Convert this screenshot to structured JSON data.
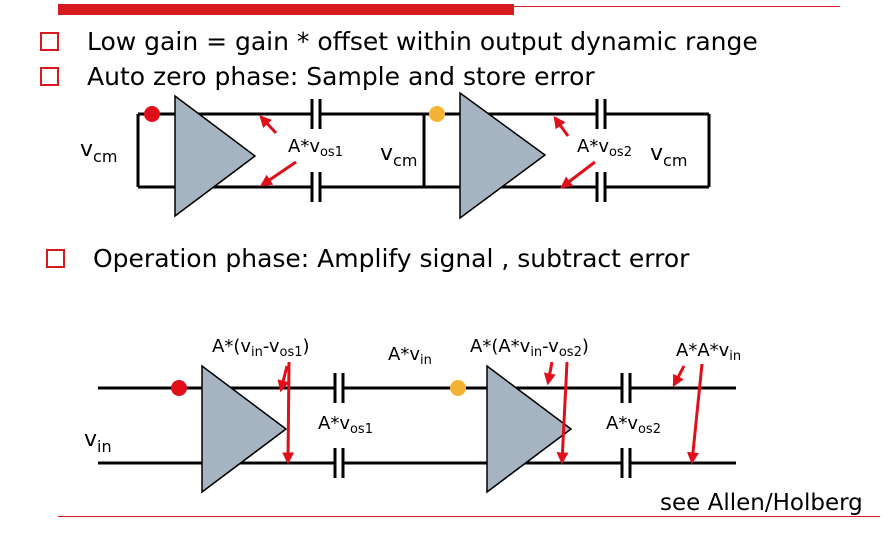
{
  "bullets": [
    "Low gain = gain * offset within output dynamic range",
    "Auto zero phase: Sample and store error",
    "Operation phase: Amplify signal , subtract error"
  ],
  "credit": "see Allen/Holberg",
  "autozero": {
    "vcm_left": {
      "main": "v",
      "sub": "cm"
    },
    "vcm_mid": {
      "main": "v",
      "sub": "cm"
    },
    "vcm_right": {
      "main": "v",
      "sub": "cm"
    },
    "err1": {
      "pre": "A*v",
      "sub": "os1"
    },
    "err2": {
      "pre": "A*v",
      "sub": "os2"
    }
  },
  "operation": {
    "vin": {
      "main": "v",
      "sub": "in"
    },
    "l1": {
      "pre": "A*(v",
      "sub1": "in",
      "mid": "-v",
      "sub2": "os1",
      "post": ")"
    },
    "l2": {
      "pre": "A*v",
      "sub": "in"
    },
    "l3": {
      "pre": "A*(A*v",
      "sub1": "in",
      "mid": "-v",
      "sub2": "os2",
      "post": ")"
    },
    "l4": {
      "pre": "A*A*v",
      "sub": "in"
    },
    "l5": {
      "pre": "A*v",
      "sub": "os1"
    },
    "l6": {
      "pre": "A*v",
      "sub": "os2"
    }
  },
  "colors": {
    "accent": "#d71920",
    "amp_fill": "#a6b4c2",
    "switch_red": "#e0101a",
    "switch_yellow": "#f5b335",
    "arrow_red": "#e0101a"
  }
}
